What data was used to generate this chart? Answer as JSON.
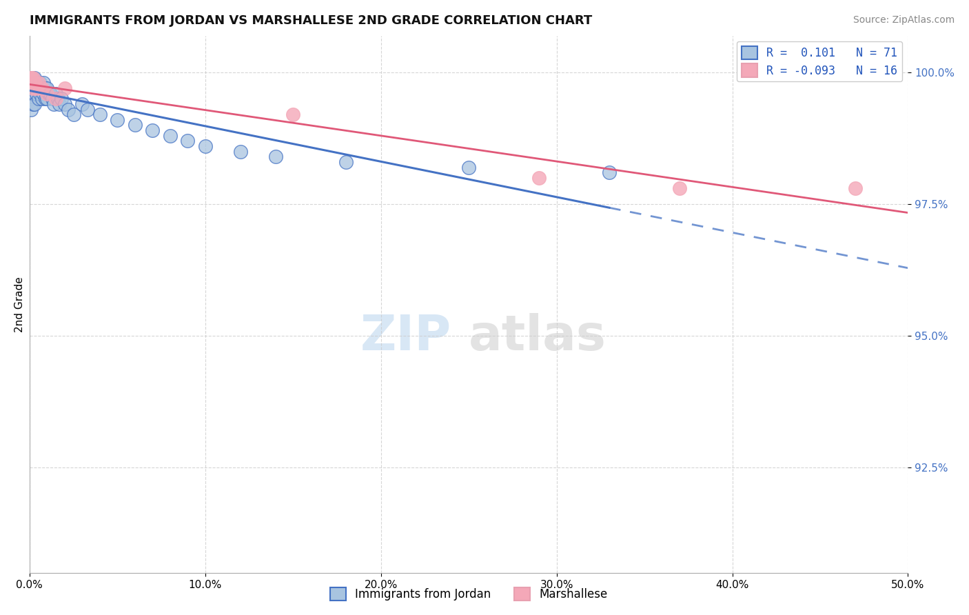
{
  "title": "IMMIGRANTS FROM JORDAN VS MARSHALLESE 2ND GRADE CORRELATION CHART",
  "source": "Source: ZipAtlas.com",
  "xlabel": "",
  "ylabel": "2nd Grade",
  "xlim": [
    0.0,
    0.5
  ],
  "ylim": [
    0.905,
    1.007
  ],
  "yticks": [
    0.925,
    0.95,
    0.975,
    1.0
  ],
  "ytick_labels": [
    "92.5%",
    "95.0%",
    "97.5%",
    "100.0%"
  ],
  "xticks": [
    0.0,
    0.1,
    0.2,
    0.3,
    0.4,
    0.5
  ],
  "xtick_labels": [
    "0.0%",
    "10.0%",
    "20.0%",
    "30.0%",
    "40.0%",
    "50.0%"
  ],
  "legend1_label": "Immigrants from Jordan",
  "legend2_label": "Marshallese",
  "R_jordan": 0.101,
  "N_jordan": 71,
  "R_marsh": -0.093,
  "N_marsh": 16,
  "color_jordan": "#a8c4e0",
  "color_marsh": "#f4a8b8",
  "color_jordan_line": "#4472c4",
  "color_marsh_line": "#e05878",
  "jordan_x": [
    0.0005,
    0.0005,
    0.0005,
    0.0008,
    0.0008,
    0.001,
    0.001,
    0.001,
    0.001,
    0.001,
    0.0012,
    0.0012,
    0.0015,
    0.0015,
    0.0015,
    0.002,
    0.002,
    0.002,
    0.002,
    0.002,
    0.0022,
    0.0022,
    0.0025,
    0.0025,
    0.003,
    0.003,
    0.003,
    0.003,
    0.003,
    0.0035,
    0.004,
    0.004,
    0.004,
    0.005,
    0.005,
    0.005,
    0.006,
    0.006,
    0.007,
    0.007,
    0.008,
    0.008,
    0.009,
    0.009,
    0.01,
    0.01,
    0.011,
    0.012,
    0.013,
    0.014,
    0.015,
    0.016,
    0.017,
    0.018,
    0.02,
    0.022,
    0.025,
    0.03,
    0.033,
    0.04,
    0.05,
    0.06,
    0.07,
    0.08,
    0.09,
    0.1,
    0.12,
    0.14,
    0.18,
    0.25,
    0.33
  ],
  "jordan_y": [
    0.999,
    0.998,
    0.997,
    0.999,
    0.997,
    0.999,
    0.998,
    0.997,
    0.995,
    0.993,
    0.999,
    0.996,
    0.999,
    0.998,
    0.996,
    0.999,
    0.998,
    0.997,
    0.996,
    0.994,
    0.999,
    0.997,
    0.998,
    0.996,
    0.999,
    0.998,
    0.997,
    0.996,
    0.994,
    0.998,
    0.998,
    0.997,
    0.996,
    0.998,
    0.997,
    0.995,
    0.998,
    0.996,
    0.997,
    0.995,
    0.998,
    0.996,
    0.997,
    0.995,
    0.997,
    0.995,
    0.996,
    0.996,
    0.995,
    0.994,
    0.996,
    0.995,
    0.994,
    0.995,
    0.994,
    0.993,
    0.992,
    0.994,
    0.993,
    0.992,
    0.991,
    0.99,
    0.989,
    0.988,
    0.987,
    0.986,
    0.985,
    0.984,
    0.983,
    0.982,
    0.981
  ],
  "marsh_x": [
    0.0005,
    0.001,
    0.001,
    0.002,
    0.002,
    0.003,
    0.004,
    0.005,
    0.007,
    0.01,
    0.015,
    0.02,
    0.15,
    0.29,
    0.37,
    0.47
  ],
  "marsh_y": [
    0.999,
    0.999,
    0.998,
    0.999,
    0.997,
    0.998,
    0.997,
    0.998,
    0.997,
    0.996,
    0.995,
    0.997,
    0.992,
    0.98,
    0.978,
    0.978
  ],
  "watermark_zip": "ZIP",
  "watermark_atlas": "atlas",
  "background_color": "#ffffff"
}
